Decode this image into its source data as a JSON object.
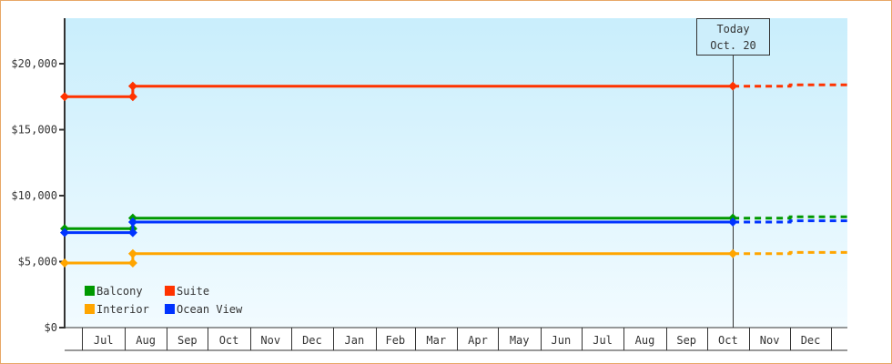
{
  "chart_data": {
    "type": "line",
    "title": "",
    "xlabel": "",
    "ylabel": "",
    "ylim": [
      0,
      23450
    ],
    "yticks": [
      0,
      5000,
      10000,
      15000,
      20000
    ],
    "ytick_labels": [
      "$0",
      "$5,000",
      "$10,000",
      "$15,000",
      "$20,000"
    ],
    "xtick_labels": [
      "Jul",
      "Aug",
      "Sep",
      "Oct",
      "Nov",
      "Dec",
      "Jan",
      "Feb",
      "Mar",
      "Apr",
      "May",
      "Jun",
      "Jul",
      "Aug",
      "Sep",
      "Oct",
      "Nov",
      "Dec"
    ],
    "xtick_dates": [
      "2015-07-01",
      "2015-08-01",
      "2015-09-01",
      "2015-10-01",
      "2015-11-01",
      "2015-12-01",
      "2016-01-01",
      "2016-02-01",
      "2016-03-01",
      "2016-04-01",
      "2016-05-01",
      "2016-06-01",
      "2016-07-01",
      "2016-08-01",
      "2016-09-01",
      "2016-10-01",
      "2016-11-01",
      "2016-12-01"
    ],
    "xlim": [
      "2015-06-18",
      "2017-01-12"
    ],
    "grid": false,
    "legend_placement": "bottom-left",
    "background": [
      "#c9eefc",
      "#f2fbff"
    ],
    "today_marker": {
      "date": "2016-10-20",
      "line1": "Today",
      "line2": "Oct. 20"
    },
    "series": [
      {
        "name": "Balcony",
        "color": "#009900",
        "points": [
          [
            "2015-06-18",
            7500
          ],
          [
            "2015-08-07",
            7500
          ],
          [
            "2015-08-07",
            8300
          ],
          [
            "2016-10-20",
            8300
          ]
        ],
        "forecast": [
          [
            "2016-10-20",
            8300
          ],
          [
            "2016-12-01",
            8300
          ],
          [
            "2016-12-01",
            8400
          ],
          [
            "2017-01-12",
            8400
          ]
        ]
      },
      {
        "name": "Suite",
        "color": "#ff3300",
        "points": [
          [
            "2015-06-18",
            17500
          ],
          [
            "2015-08-07",
            17500
          ],
          [
            "2015-08-07",
            18300
          ],
          [
            "2016-10-20",
            18300
          ]
        ],
        "forecast": [
          [
            "2016-10-20",
            18300
          ],
          [
            "2016-12-01",
            18300
          ],
          [
            "2016-12-01",
            18400
          ],
          [
            "2017-01-12",
            18400
          ]
        ]
      },
      {
        "name": "Interior",
        "color": "#ffa500",
        "points": [
          [
            "2015-06-18",
            4900
          ],
          [
            "2015-08-07",
            4900
          ],
          [
            "2015-08-07",
            5600
          ],
          [
            "2016-10-20",
            5600
          ]
        ],
        "forecast": [
          [
            "2016-10-20",
            5600
          ],
          [
            "2016-12-01",
            5600
          ],
          [
            "2016-12-01",
            5700
          ],
          [
            "2017-01-12",
            5700
          ]
        ]
      },
      {
        "name": "Ocean View",
        "color": "#0033ff",
        "points": [
          [
            "2015-06-18",
            7200
          ],
          [
            "2015-08-07",
            7200
          ],
          [
            "2015-08-07",
            8000
          ],
          [
            "2016-10-20",
            8000
          ]
        ],
        "forecast": [
          [
            "2016-10-20",
            8000
          ],
          [
            "2016-12-01",
            8000
          ],
          [
            "2016-12-01",
            8100
          ],
          [
            "2017-01-12",
            8100
          ]
        ]
      }
    ]
  }
}
